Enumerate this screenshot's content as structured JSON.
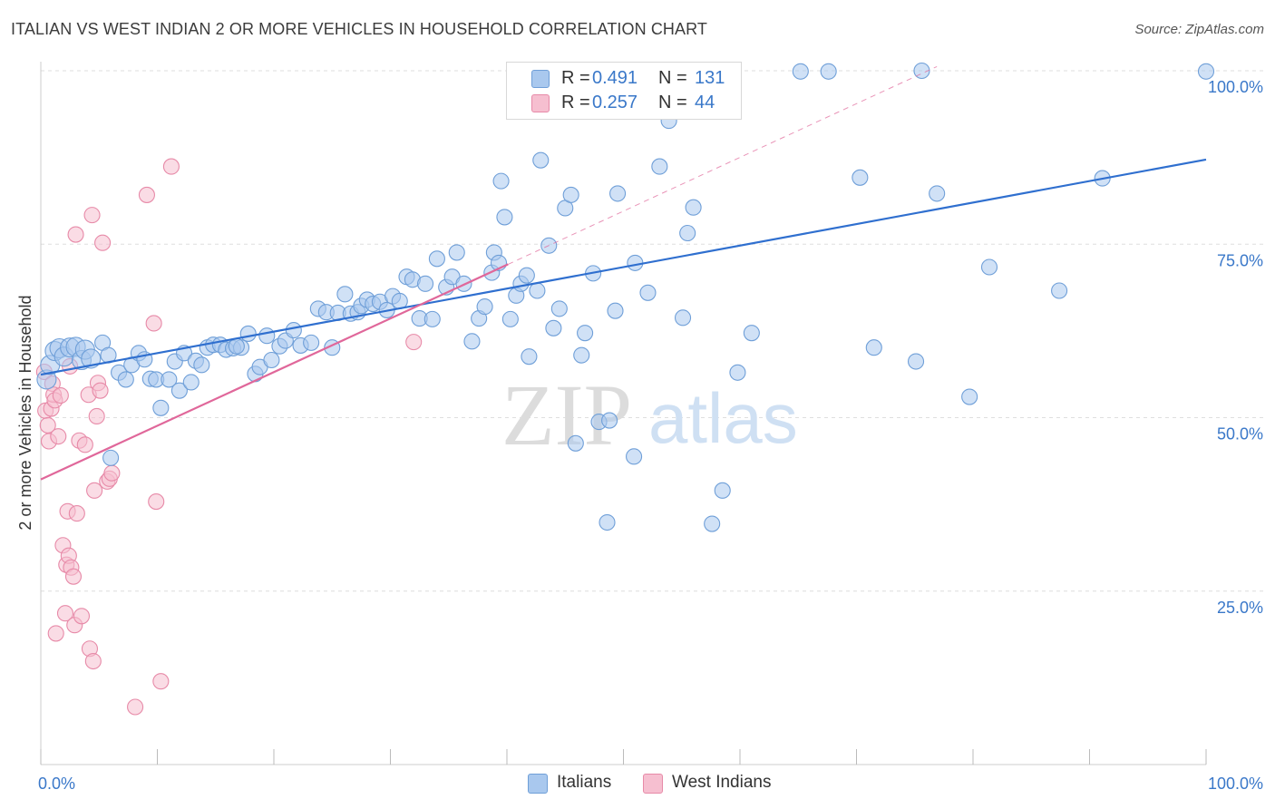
{
  "header": {
    "title": "ITALIAN VS WEST INDIAN 2 OR MORE VEHICLES IN HOUSEHOLD CORRELATION CHART",
    "source": "Source: ZipAtlas.com"
  },
  "legend_top": {
    "rows": [
      {
        "r_label": "R =",
        "r_value": "0.491",
        "n_label": "N =",
        "n_value": "131"
      },
      {
        "r_label": "R =",
        "r_value": "0.257",
        "n_label": "N =",
        "n_value": "44"
      }
    ]
  },
  "legend_bottom": {
    "items": [
      "Italians",
      "West Indians"
    ]
  },
  "watermark": {
    "zip": "ZIP",
    "atlas": "atlas"
  },
  "colors": {
    "italians_fill": "#a9c8ee",
    "italians_stroke": "#6f9fd8",
    "italians_line": "#2f6fcf",
    "westindians_fill": "#f6bfd0",
    "westindians_stroke": "#e78aa8",
    "westindians_line": "#e0679a",
    "axis_label": "#3a78c9",
    "grid": "#dedede"
  },
  "chart_data": {
    "type": "scatter",
    "title": "ITALIAN VS WEST INDIAN 2 OR MORE VEHICLES IN HOUSEHOLD CORRELATION CHART",
    "xlabel": "",
    "ylabel": "2 or more Vehicles in Household",
    "xlim": [
      0,
      100
    ],
    "ylim": [
      0,
      102
    ],
    "x_tick_labels": [
      "0.0%",
      "100.0%"
    ],
    "y_ticks": [
      25,
      50,
      75,
      100
    ],
    "y_tick_labels": [
      "25.0%",
      "50.0%",
      "75.0%",
      "100.0%"
    ],
    "grid": true,
    "legend_position": "top-center",
    "series": [
      {
        "name": "Italians",
        "R": 0.491,
        "N": 131,
        "trend": {
          "x": [
            0,
            100
          ],
          "y": [
            56.2,
            87.2
          ]
        },
        "points": [
          [
            0.5,
            55.5
          ],
          [
            0.8,
            57.6
          ],
          [
            1.2,
            59.6
          ],
          [
            1.6,
            60.0
          ],
          [
            2.0,
            58.8
          ],
          [
            2.5,
            60.1
          ],
          [
            3.0,
            60.2
          ],
          [
            3.5,
            58.3
          ],
          [
            3.8,
            59.8
          ],
          [
            4.3,
            58.5
          ],
          [
            5.3,
            60.8
          ],
          [
            5.8,
            59.0
          ],
          [
            6.7,
            56.5
          ],
          [
            7.3,
            55.5
          ],
          [
            7.8,
            57.6
          ],
          [
            8.4,
            59.3
          ],
          [
            8.9,
            58.4
          ],
          [
            9.4,
            55.6
          ],
          [
            9.9,
            55.5
          ],
          [
            10.3,
            51.4
          ],
          [
            11.0,
            55.5
          ],
          [
            11.5,
            58.1
          ],
          [
            11.9,
            53.9
          ],
          [
            12.3,
            59.3
          ],
          [
            12.9,
            55.1
          ],
          [
            13.3,
            58.2
          ],
          [
            13.8,
            57.6
          ],
          [
            14.3,
            60.1
          ],
          [
            14.8,
            60.5
          ],
          [
            15.4,
            60.5
          ],
          [
            15.9,
            59.8
          ],
          [
            16.5,
            60.0
          ],
          [
            17.2,
            60.1
          ],
          [
            17.8,
            62.1
          ],
          [
            18.4,
            56.3
          ],
          [
            18.8,
            57.3
          ],
          [
            19.4,
            61.8
          ],
          [
            19.8,
            58.3
          ],
          [
            20.5,
            60.3
          ],
          [
            21.0,
            61.1
          ],
          [
            21.7,
            62.6
          ],
          [
            22.3,
            60.4
          ],
          [
            23.2,
            60.8
          ],
          [
            23.8,
            65.7
          ],
          [
            24.5,
            65.2
          ],
          [
            25.0,
            60.1
          ],
          [
            25.5,
            65.1
          ],
          [
            26.1,
            67.8
          ],
          [
            26.6,
            65.0
          ],
          [
            27.2,
            65.2
          ],
          [
            27.5,
            66.1
          ],
          [
            28.0,
            67.0
          ],
          [
            28.5,
            66.4
          ],
          [
            29.1,
            66.7
          ],
          [
            29.7,
            65.5
          ],
          [
            30.2,
            67.5
          ],
          [
            30.8,
            66.8
          ],
          [
            31.4,
            70.3
          ],
          [
            31.9,
            69.9
          ],
          [
            32.5,
            64.3
          ],
          [
            33.0,
            69.3
          ],
          [
            33.6,
            64.2
          ],
          [
            34.0,
            72.9
          ],
          [
            34.8,
            68.8
          ],
          [
            35.3,
            70.3
          ],
          [
            35.7,
            73.8
          ],
          [
            36.3,
            69.3
          ],
          [
            37.0,
            61.0
          ],
          [
            37.6,
            64.3
          ],
          [
            38.1,
            66.0
          ],
          [
            38.7,
            70.9
          ],
          [
            38.9,
            73.8
          ],
          [
            39.3,
            72.3
          ],
          [
            39.5,
            84.1
          ],
          [
            39.8,
            78.9
          ],
          [
            40.3,
            64.2
          ],
          [
            40.8,
            67.6
          ],
          [
            41.2,
            69.3
          ],
          [
            41.7,
            70.5
          ],
          [
            41.9,
            58.8
          ],
          [
            42.6,
            68.3
          ],
          [
            42.9,
            87.1
          ],
          [
            43.6,
            74.8
          ],
          [
            44.0,
            62.9
          ],
          [
            44.5,
            65.7
          ],
          [
            45.0,
            80.2
          ],
          [
            45.5,
            82.1
          ],
          [
            45.9,
            46.3
          ],
          [
            46.4,
            59.0
          ],
          [
            46.7,
            62.2
          ],
          [
            47.4,
            70.8
          ],
          [
            47.9,
            49.4
          ],
          [
            48.6,
            34.9
          ],
          [
            48.8,
            49.6
          ],
          [
            49.3,
            65.4
          ],
          [
            49.5,
            82.3
          ],
          [
            50.9,
            44.4
          ],
          [
            51.0,
            72.3
          ],
          [
            52.1,
            68.0
          ],
          [
            53.1,
            86.2
          ],
          [
            53.9,
            92.8
          ],
          [
            54.0,
            94.3
          ],
          [
            55.1,
            64.4
          ],
          [
            55.5,
            76.6
          ],
          [
            56.0,
            80.3
          ],
          [
            57.6,
            34.7
          ],
          [
            58.5,
            39.5
          ],
          [
            59.8,
            56.5
          ],
          [
            61.0,
            62.2
          ],
          [
            65.2,
            99.9
          ],
          [
            67.6,
            99.9
          ],
          [
            70.3,
            84.6
          ],
          [
            71.5,
            60.1
          ],
          [
            75.1,
            58.1
          ],
          [
            75.6,
            100.0
          ],
          [
            76.9,
            82.3
          ],
          [
            79.7,
            53.0
          ],
          [
            81.4,
            71.7
          ],
          [
            87.4,
            68.3
          ],
          [
            91.1,
            84.5
          ],
          [
            100.0,
            99.9
          ],
          [
            46.2,
            99.9
          ],
          [
            48.8,
            99.9
          ],
          [
            51.3,
            99.9
          ],
          [
            41.3,
            99.8
          ],
          [
            49.9,
            99.9
          ],
          [
            53.6,
            99.9
          ],
          [
            57.5,
            99.9
          ],
          [
            44.1,
            99.9
          ],
          [
            6.0,
            44.2
          ],
          [
            16.8,
            60.3
          ]
        ]
      },
      {
        "name": "West Indians",
        "R": 0.257,
        "N": 44,
        "trend": {
          "x": [
            0,
            40.1
          ],
          "y": [
            41.1,
            72.1
          ]
        },
        "trend_dashed": {
          "x": [
            40.1,
            76.9
          ],
          "y": [
            72.1,
            100.6
          ]
        },
        "points": [
          [
            0.3,
            56.6
          ],
          [
            0.4,
            51.0
          ],
          [
            0.6,
            48.9
          ],
          [
            0.7,
            46.6
          ],
          [
            0.9,
            51.3
          ],
          [
            1.0,
            54.9
          ],
          [
            1.1,
            53.3
          ],
          [
            1.2,
            52.5
          ],
          [
            1.3,
            18.9
          ],
          [
            1.5,
            47.3
          ],
          [
            1.7,
            53.2
          ],
          [
            1.9,
            31.6
          ],
          [
            2.1,
            21.8
          ],
          [
            2.2,
            28.8
          ],
          [
            2.3,
            36.5
          ],
          [
            2.4,
            30.1
          ],
          [
            2.5,
            57.4
          ],
          [
            2.6,
            28.4
          ],
          [
            2.8,
            27.1
          ],
          [
            2.9,
            20.1
          ],
          [
            3.0,
            76.4
          ],
          [
            3.1,
            36.2
          ],
          [
            3.3,
            46.7
          ],
          [
            3.5,
            21.4
          ],
          [
            3.8,
            46.1
          ],
          [
            4.1,
            53.3
          ],
          [
            4.2,
            16.7
          ],
          [
            4.4,
            79.2
          ],
          [
            4.5,
            14.9
          ],
          [
            4.6,
            39.5
          ],
          [
            4.8,
            50.2
          ],
          [
            4.9,
            55.0
          ],
          [
            5.1,
            53.9
          ],
          [
            5.3,
            75.2
          ],
          [
            5.7,
            40.8
          ],
          [
            5.9,
            41.2
          ],
          [
            6.1,
            42.0
          ],
          [
            8.1,
            8.3
          ],
          [
            9.1,
            82.1
          ],
          [
            9.7,
            63.6
          ],
          [
            9.9,
            37.9
          ],
          [
            10.3,
            12.0
          ],
          [
            11.2,
            86.2
          ],
          [
            32.0,
            60.9
          ]
        ]
      }
    ]
  }
}
